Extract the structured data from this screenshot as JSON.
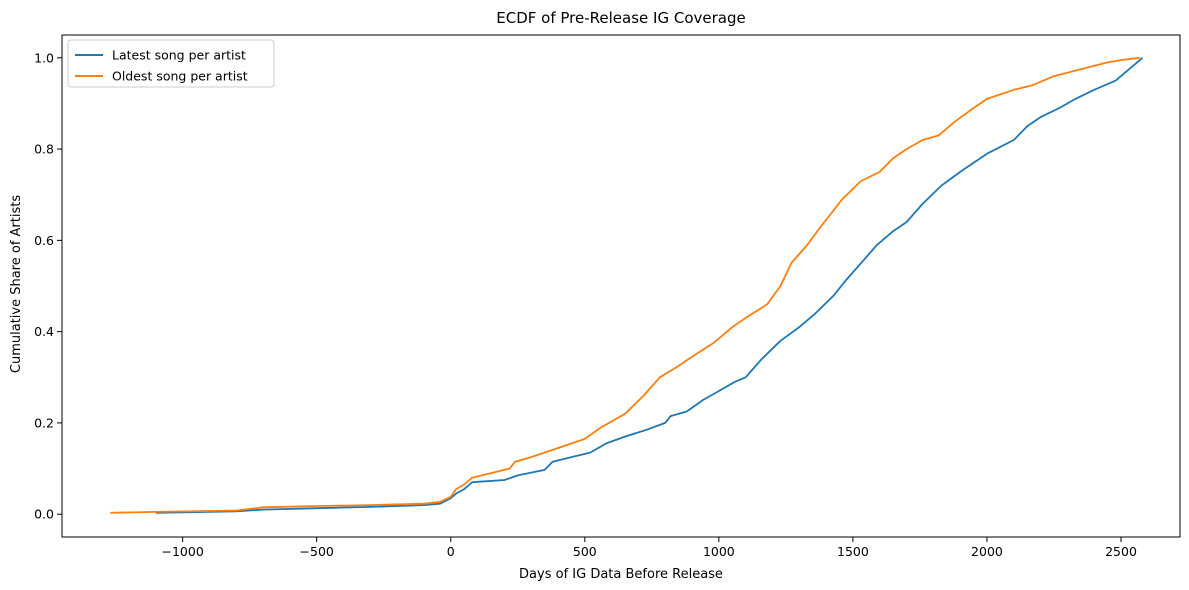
{
  "chart_data": {
    "type": "line",
    "title": "ECDF of Pre-Release IG Coverage",
    "xlabel": "Days of IG Data Before Release",
    "ylabel": "Cumulative Share of Artists",
    "xlim": [
      -1450,
      2720
    ],
    "ylim": [
      -0.05,
      1.05
    ],
    "xticks": [
      -1000,
      -500,
      0,
      500,
      1000,
      1500,
      2000,
      2500
    ],
    "xtick_labels": [
      "−1000",
      "−500",
      "0",
      "500",
      "1000",
      "1500",
      "2000",
      "2500"
    ],
    "yticks": [
      0.0,
      0.2,
      0.4,
      0.6,
      0.8,
      1.0
    ],
    "ytick_labels": [
      "0.0",
      "0.2",
      "0.4",
      "0.6",
      "0.8",
      "1.0"
    ],
    "grid": false,
    "legend_position": "upper-left",
    "series": [
      {
        "name": "Latest song per artist",
        "color": "#1f77b4",
        "points": [
          [
            -1100,
            0.003
          ],
          [
            -800,
            0.006
          ],
          [
            -700,
            0.01
          ],
          [
            -500,
            0.013
          ],
          [
            -300,
            0.016
          ],
          [
            -100,
            0.02
          ],
          [
            -40,
            0.023
          ],
          [
            0,
            0.035
          ],
          [
            20,
            0.045
          ],
          [
            50,
            0.055
          ],
          [
            80,
            0.07
          ],
          [
            200,
            0.075
          ],
          [
            250,
            0.085
          ],
          [
            350,
            0.097
          ],
          [
            380,
            0.115
          ],
          [
            450,
            0.125
          ],
          [
            520,
            0.135
          ],
          [
            580,
            0.155
          ],
          [
            650,
            0.17
          ],
          [
            730,
            0.185
          ],
          [
            800,
            0.2
          ],
          [
            820,
            0.215
          ],
          [
            880,
            0.225
          ],
          [
            940,
            0.25
          ],
          [
            1000,
            0.27
          ],
          [
            1060,
            0.29
          ],
          [
            1100,
            0.3
          ],
          [
            1130,
            0.32
          ],
          [
            1160,
            0.34
          ],
          [
            1230,
            0.38
          ],
          [
            1300,
            0.41
          ],
          [
            1360,
            0.44
          ],
          [
            1430,
            0.48
          ],
          [
            1470,
            0.51
          ],
          [
            1530,
            0.55
          ],
          [
            1590,
            0.59
          ],
          [
            1650,
            0.62
          ],
          [
            1700,
            0.64
          ],
          [
            1760,
            0.68
          ],
          [
            1830,
            0.72
          ],
          [
            1900,
            0.75
          ],
          [
            1950,
            0.77
          ],
          [
            2000,
            0.79
          ],
          [
            2100,
            0.82
          ],
          [
            2150,
            0.85
          ],
          [
            2200,
            0.87
          ],
          [
            2270,
            0.89
          ],
          [
            2330,
            0.91
          ],
          [
            2400,
            0.93
          ],
          [
            2480,
            0.95
          ],
          [
            2530,
            0.975
          ],
          [
            2560,
            0.99
          ],
          [
            2580,
            1.0
          ]
        ]
      },
      {
        "name": "Oldest song per artist",
        "color": "#ff7f0e",
        "points": [
          [
            -1270,
            0.003
          ],
          [
            -1100,
            0.005
          ],
          [
            -800,
            0.008
          ],
          [
            -700,
            0.015
          ],
          [
            -500,
            0.018
          ],
          [
            -300,
            0.02
          ],
          [
            -100,
            0.023
          ],
          [
            -40,
            0.027
          ],
          [
            0,
            0.038
          ],
          [
            20,
            0.055
          ],
          [
            50,
            0.065
          ],
          [
            80,
            0.08
          ],
          [
            150,
            0.09
          ],
          [
            220,
            0.1
          ],
          [
            240,
            0.115
          ],
          [
            300,
            0.125
          ],
          [
            400,
            0.145
          ],
          [
            500,
            0.165
          ],
          [
            560,
            0.19
          ],
          [
            650,
            0.22
          ],
          [
            720,
            0.26
          ],
          [
            780,
            0.3
          ],
          [
            850,
            0.325
          ],
          [
            900,
            0.345
          ],
          [
            980,
            0.375
          ],
          [
            1050,
            0.41
          ],
          [
            1100,
            0.43
          ],
          [
            1180,
            0.46
          ],
          [
            1230,
            0.5
          ],
          [
            1270,
            0.55
          ],
          [
            1330,
            0.59
          ],
          [
            1380,
            0.63
          ],
          [
            1420,
            0.66
          ],
          [
            1460,
            0.69
          ],
          [
            1530,
            0.73
          ],
          [
            1600,
            0.75
          ],
          [
            1650,
            0.78
          ],
          [
            1700,
            0.8
          ],
          [
            1760,
            0.82
          ],
          [
            1820,
            0.83
          ],
          [
            1880,
            0.86
          ],
          [
            1950,
            0.89
          ],
          [
            2000,
            0.91
          ],
          [
            2100,
            0.93
          ],
          [
            2170,
            0.94
          ],
          [
            2250,
            0.96
          ],
          [
            2350,
            0.975
          ],
          [
            2450,
            0.99
          ],
          [
            2500,
            0.995
          ],
          [
            2570,
            1.0
          ]
        ]
      }
    ]
  }
}
